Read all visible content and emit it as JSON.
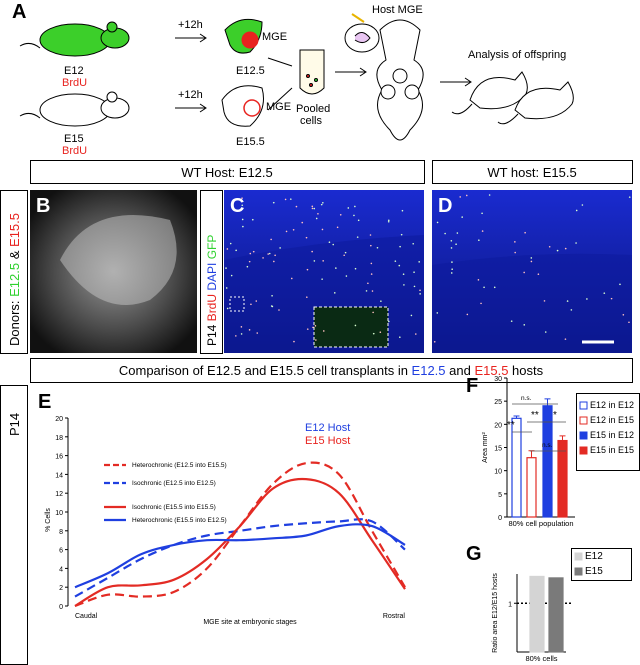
{
  "panel_letters": [
    "A",
    "B",
    "C",
    "D",
    "E",
    "F",
    "G"
  ],
  "panel_a": {
    "timing_1": "+12h",
    "timing_2": "+12h",
    "donor_1": "E12",
    "donor_1_label": "BrdU",
    "donor_2": "E15",
    "donor_2_label": "BrdU",
    "mge_1": "MGE",
    "stage_1": "E12.5",
    "mge_2": "MGE",
    "stage_2": "E15.5",
    "pooled": [
      "Pooled",
      "cells"
    ],
    "host": "Host MGE",
    "analysis": "Analysis of offspring"
  },
  "headers": {
    "host_e12": "WT Host: E12.5",
    "host_e15": "WT host: E15.5",
    "comparison": [
      "Comparison of E12.5 and E15.5 cell transplants in ",
      "E12.5",
      " and ",
      "E15.5",
      " hosts"
    ]
  },
  "side_labels": {
    "donors": [
      "Donors: ",
      "E12.5",
      " & ",
      "E15.5"
    ],
    "stain": [
      "P14 ",
      "BrdU",
      " DAPI",
      " GFP"
    ],
    "age": "P14"
  },
  "chart_data": [
    {
      "type": "line",
      "ylabel": "% Cells",
      "xlabel": "MGE site at embryonic stages",
      "categories": [
        "Caudal",
        null,
        null,
        null,
        null,
        null,
        null,
        null,
        null,
        null,
        "Rostral"
      ],
      "ylim": [
        0,
        20
      ],
      "yticks": [
        0,
        2,
        4,
        6,
        8,
        10,
        12,
        14,
        16,
        18,
        20
      ],
      "host_legend": [
        {
          "name": "E12 Host",
          "color": "#1f3fe0"
        },
        {
          "name": "E15 Host",
          "color": "#e8231f"
        }
      ],
      "series": [
        {
          "name": "Heterochronic (E12.5 into E15.5)",
          "color": "#e32b24",
          "dash": true,
          "values": [
            0,
            1.2,
            1,
            1.5,
            4,
            8.5,
            13,
            15.2,
            14,
            8,
            2
          ]
        },
        {
          "name": "Isochronic (E12.5 into E12.5)",
          "color": "#1f3fe0",
          "dash": true,
          "values": [
            1,
            3,
            5,
            6.5,
            7.5,
            8,
            8.5,
            8.8,
            9,
            9,
            6
          ]
        },
        {
          "name": "Isochronic (E15.5 into E15.5)",
          "color": "#e32b24",
          "dash": false,
          "values": [
            0,
            2,
            2.2,
            2.8,
            5,
            8.5,
            12.5,
            13.5,
            12,
            7,
            1.8
          ]
        },
        {
          "name": "Heterochronic (E15.5 into E12.5)",
          "color": "#1f3fe0",
          "dash": false,
          "values": [
            2,
            3.5,
            5.5,
            6.5,
            7,
            7,
            7.2,
            7.5,
            8.5,
            8.5,
            6.5
          ]
        }
      ]
    },
    {
      "type": "bar",
      "ylabel": "Area mm²",
      "categories": [
        "80% cell population"
      ],
      "ylim": [
        0,
        30
      ],
      "yticks": [
        0,
        5,
        10,
        15,
        20,
        25,
        30
      ],
      "series": [
        {
          "name": "E12 in E12",
          "color": "#1f3fe0",
          "filled": false,
          "values": [
            21.3
          ],
          "errors": [
            0.5
          ]
        },
        {
          "name": "E12 in E15",
          "color": "#e32b24",
          "filled": false,
          "values": [
            12.8
          ],
          "errors": [
            1.5
          ]
        },
        {
          "name": "E15 in E12",
          "color": "#1f3fe0",
          "filled": true,
          "values": [
            24
          ],
          "errors": [
            1.5
          ]
        },
        {
          "name": "E15 in E15",
          "color": "#e32b24",
          "filled": true,
          "values": [
            16.5
          ],
          "errors": [
            1
          ]
        }
      ],
      "annotations": [
        "n.s.",
        "**",
        "**",
        "*",
        "n.s."
      ]
    },
    {
      "type": "bar",
      "ylabel": "Ratio area E12/E15 hosts",
      "categories": [
        "80% cells"
      ],
      "ylim": [
        0,
        1.6
      ],
      "yticks": [
        1
      ],
      "reference_line": 1,
      "series": [
        {
          "name": "E12",
          "color": "#d4d4d4",
          "filled": true,
          "values": [
            1.55
          ]
        },
        {
          "name": "E15",
          "color": "#7a7a7a",
          "filled": true,
          "values": [
            1.52
          ]
        }
      ]
    }
  ]
}
